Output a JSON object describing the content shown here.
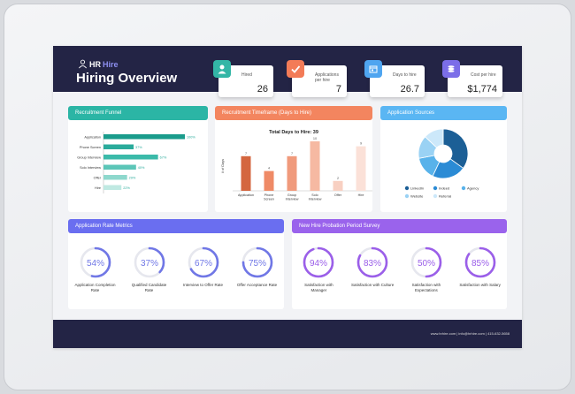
{
  "brand": {
    "hr": "HR",
    "hire": "Hire"
  },
  "title": "Hiring Overview",
  "kpis": [
    {
      "label": "Hired",
      "value": "26",
      "color": "#33b6a6",
      "icon": "user-icon"
    },
    {
      "label": "Applications per hire",
      "value": "7",
      "color": "#f37b57",
      "icon": "check-icon"
    },
    {
      "label": "Days to hire",
      "value": "26.7",
      "color": "#4fa5f0",
      "icon": "calendar-icon"
    },
    {
      "label": "Cost per hire",
      "value": "$1,774",
      "color": "#7b6ee8",
      "icon": "coins-icon"
    }
  ],
  "funnel": {
    "title": "Recruitment Funnel",
    "header_color": "#2bb5a5",
    "chart_data": {
      "type": "bar",
      "orientation": "horizontal",
      "categories": [
        "Application",
        "Phone Screen",
        "Group Interview",
        "Solo Interview",
        "Offer",
        "Hire"
      ],
      "values": [
        100,
        37,
        67,
        40,
        29,
        22
      ],
      "value_labels": [
        "100%",
        "37%",
        "67%",
        "40%",
        "29%",
        "22%"
      ],
      "xlim": [
        0,
        100
      ]
    }
  },
  "timeframe": {
    "title": "Recruitment Timeframe (Days to Hire)",
    "header_color": "#f3855f",
    "chart_data": {
      "type": "bar",
      "title": "Total Days to Hire: 39",
      "ylabel": "# of Days",
      "categories": [
        "Application",
        "Phone Screen",
        "Group Interview",
        "Solo Interview",
        "Offer",
        "Hire"
      ],
      "values": [
        7,
        4,
        7,
        10,
        2,
        9
      ],
      "colors": [
        "#d4663f",
        "#ef8a66",
        "#f09a7c",
        "#f6b9a2",
        "#f8d0c2",
        "#fbe1d8"
      ],
      "ylim": [
        0,
        10
      ]
    }
  },
  "sources": {
    "title": "Application Sources",
    "header_color": "#5ab6f3",
    "chart_data": {
      "type": "pie",
      "labels": [
        "LinkedIn",
        "Indeed",
        "Agency",
        "Website",
        "Referral"
      ],
      "values": [
        35,
        22,
        15,
        15,
        13
      ],
      "colors": [
        "#1c5f96",
        "#2b8bd5",
        "#58b2ea",
        "#9ad2f4",
        "#cce8fa"
      ]
    }
  },
  "rates": {
    "title": "Application Rate Metrics",
    "header_color": "#6a6ef0",
    "ring_color": "#7077e6",
    "items": [
      {
        "label": "Application Completion Rate",
        "value": "54%",
        "pct": 54
      },
      {
        "label": "Qualified Candidate Rate",
        "value": "37%",
        "pct": 37
      },
      {
        "label": "Interview to Offer Rate",
        "value": "67%",
        "pct": 67
      },
      {
        "label": "Offer Acceptance Rate",
        "value": "75%",
        "pct": 75
      }
    ]
  },
  "survey": {
    "title": "New Hire Probation Period Survey",
    "header_color": "#9a63ec",
    "ring_color": "#9b5fe9",
    "items": [
      {
        "label": "Satisfaction with Manager",
        "value": "94%",
        "pct": 94
      },
      {
        "label": "Satisfaction with Culture",
        "value": "83%",
        "pct": 83
      },
      {
        "label": "Satisfaction with Expectations",
        "value": "50%",
        "pct": 50
      },
      {
        "label": "Satisfaction with Salary",
        "value": "85%",
        "pct": 85
      }
    ]
  },
  "footer": "www.hrhire.com | info@hrhire.com | 415-632-5658"
}
